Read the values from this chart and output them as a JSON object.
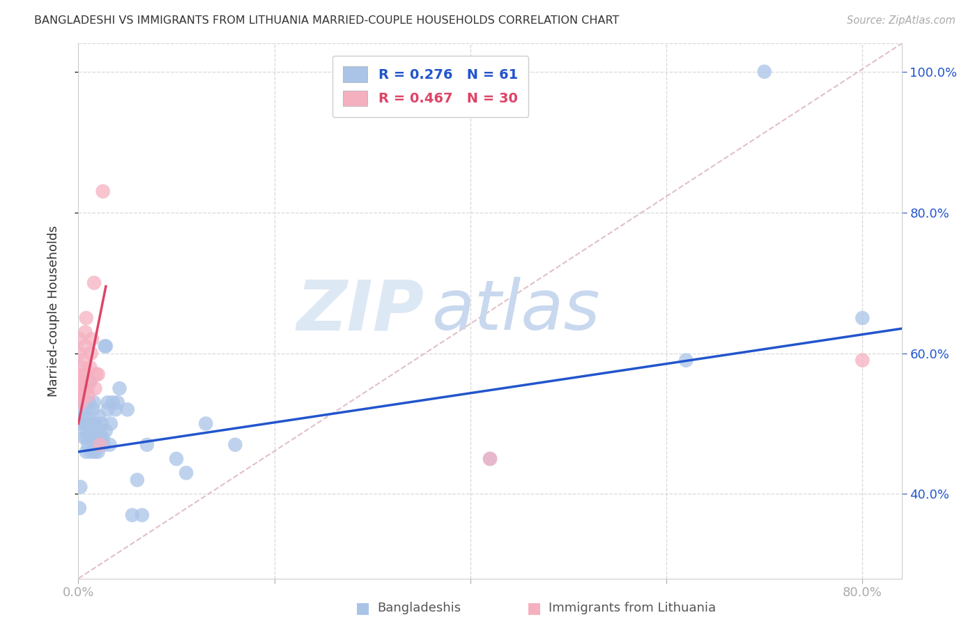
{
  "title": "BANGLADESHI VS IMMIGRANTS FROM LITHUANIA MARRIED-COUPLE HOUSEHOLDS CORRELATION CHART",
  "source": "Source: ZipAtlas.com",
  "ylabel": "Married-couple Households",
  "legend_blue_R": "0.276",
  "legend_blue_N": "61",
  "legend_pink_R": "0.467",
  "legend_pink_N": "30",
  "blue_label": "Bangladeshis",
  "pink_label": "Immigrants from Lithuania",
  "watermark_zip": "ZIP",
  "watermark_atlas": "atlas",
  "background_color": "#ffffff",
  "grid_color": "#d8d8d8",
  "blue_color": "#aac4e8",
  "blue_line_color": "#2255cc",
  "pink_color": "#f5b0c0",
  "pink_line_color": "#dd4466",
  "diagonal_color": "#e0c0c8",
  "blue_scatter": [
    [
      0.001,
      0.38
    ],
    [
      0.002,
      0.41
    ],
    [
      0.003,
      0.5
    ],
    [
      0.004,
      0.52
    ],
    [
      0.005,
      0.55
    ],
    [
      0.005,
      0.53
    ],
    [
      0.006,
      0.48
    ],
    [
      0.006,
      0.5
    ],
    [
      0.007,
      0.51
    ],
    [
      0.007,
      0.49
    ],
    [
      0.008,
      0.46
    ],
    [
      0.008,
      0.48
    ],
    [
      0.009,
      0.5
    ],
    [
      0.009,
      0.52
    ],
    [
      0.01,
      0.47
    ],
    [
      0.01,
      0.49
    ],
    [
      0.011,
      0.53
    ],
    [
      0.012,
      0.56
    ],
    [
      0.012,
      0.48
    ],
    [
      0.013,
      0.46
    ],
    [
      0.014,
      0.5
    ],
    [
      0.015,
      0.52
    ],
    [
      0.015,
      0.48
    ],
    [
      0.016,
      0.53
    ],
    [
      0.017,
      0.46
    ],
    [
      0.018,
      0.48
    ],
    [
      0.018,
      0.5
    ],
    [
      0.019,
      0.47
    ],
    [
      0.02,
      0.46
    ],
    [
      0.02,
      0.48
    ],
    [
      0.021,
      0.51
    ],
    [
      0.022,
      0.49
    ],
    [
      0.022,
      0.47
    ],
    [
      0.023,
      0.48
    ],
    [
      0.024,
      0.5
    ],
    [
      0.025,
      0.48
    ],
    [
      0.026,
      0.47
    ],
    [
      0.027,
      0.61
    ],
    [
      0.028,
      0.61
    ],
    [
      0.028,
      0.49
    ],
    [
      0.03,
      0.53
    ],
    [
      0.03,
      0.52
    ],
    [
      0.032,
      0.47
    ],
    [
      0.033,
      0.5
    ],
    [
      0.035,
      0.53
    ],
    [
      0.038,
      0.52
    ],
    [
      0.04,
      0.53
    ],
    [
      0.042,
      0.55
    ],
    [
      0.05,
      0.52
    ],
    [
      0.055,
      0.37
    ],
    [
      0.06,
      0.42
    ],
    [
      0.065,
      0.37
    ],
    [
      0.07,
      0.47
    ],
    [
      0.1,
      0.45
    ],
    [
      0.11,
      0.43
    ],
    [
      0.13,
      0.5
    ],
    [
      0.16,
      0.47
    ],
    [
      0.42,
      0.45
    ],
    [
      0.62,
      0.59
    ],
    [
      0.7,
      1.0
    ],
    [
      0.8,
      0.65
    ]
  ],
  "pink_scatter": [
    [
      0.001,
      0.62
    ],
    [
      0.001,
      0.6
    ],
    [
      0.001,
      0.57
    ],
    [
      0.002,
      0.56
    ],
    [
      0.002,
      0.54
    ],
    [
      0.003,
      0.53
    ],
    [
      0.003,
      0.58
    ],
    [
      0.003,
      0.55
    ],
    [
      0.004,
      0.56
    ],
    [
      0.004,
      0.54
    ],
    [
      0.005,
      0.57
    ],
    [
      0.005,
      0.55
    ],
    [
      0.006,
      0.59
    ],
    [
      0.007,
      0.61
    ],
    [
      0.007,
      0.63
    ],
    [
      0.008,
      0.65
    ],
    [
      0.009,
      0.55
    ],
    [
      0.01,
      0.54
    ],
    [
      0.011,
      0.56
    ],
    [
      0.012,
      0.58
    ],
    [
      0.013,
      0.6
    ],
    [
      0.014,
      0.62
    ],
    [
      0.016,
      0.7
    ],
    [
      0.017,
      0.55
    ],
    [
      0.018,
      0.57
    ],
    [
      0.02,
      0.57
    ],
    [
      0.022,
      0.47
    ],
    [
      0.025,
      0.83
    ],
    [
      0.42,
      0.45
    ],
    [
      0.8,
      0.59
    ]
  ],
  "xlim": [
    0.0,
    0.84
  ],
  "ylim": [
    0.28,
    1.04
  ],
  "blue_line_x": [
    0.0,
    0.84
  ],
  "blue_line_y": [
    0.46,
    0.635
  ],
  "pink_line_x": [
    0.0,
    0.028
  ],
  "pink_line_y": [
    0.5,
    0.695
  ],
  "diag_line_x": [
    0.0,
    0.84
  ],
  "diag_line_y": [
    0.28,
    1.04
  ],
  "ytick_positions": [
    0.4,
    0.6,
    0.8,
    1.0
  ],
  "ytick_labels": [
    "40.0%",
    "60.0%",
    "80.0%",
    "100.0%"
  ],
  "xtick_positions": [
    0.0,
    0.2,
    0.4,
    0.6,
    0.8
  ],
  "xtick_labels": [
    "0.0%",
    "",
    "",
    "",
    "80.0%"
  ],
  "grid_yticks": [
    0.4,
    0.6,
    0.8,
    1.0
  ]
}
